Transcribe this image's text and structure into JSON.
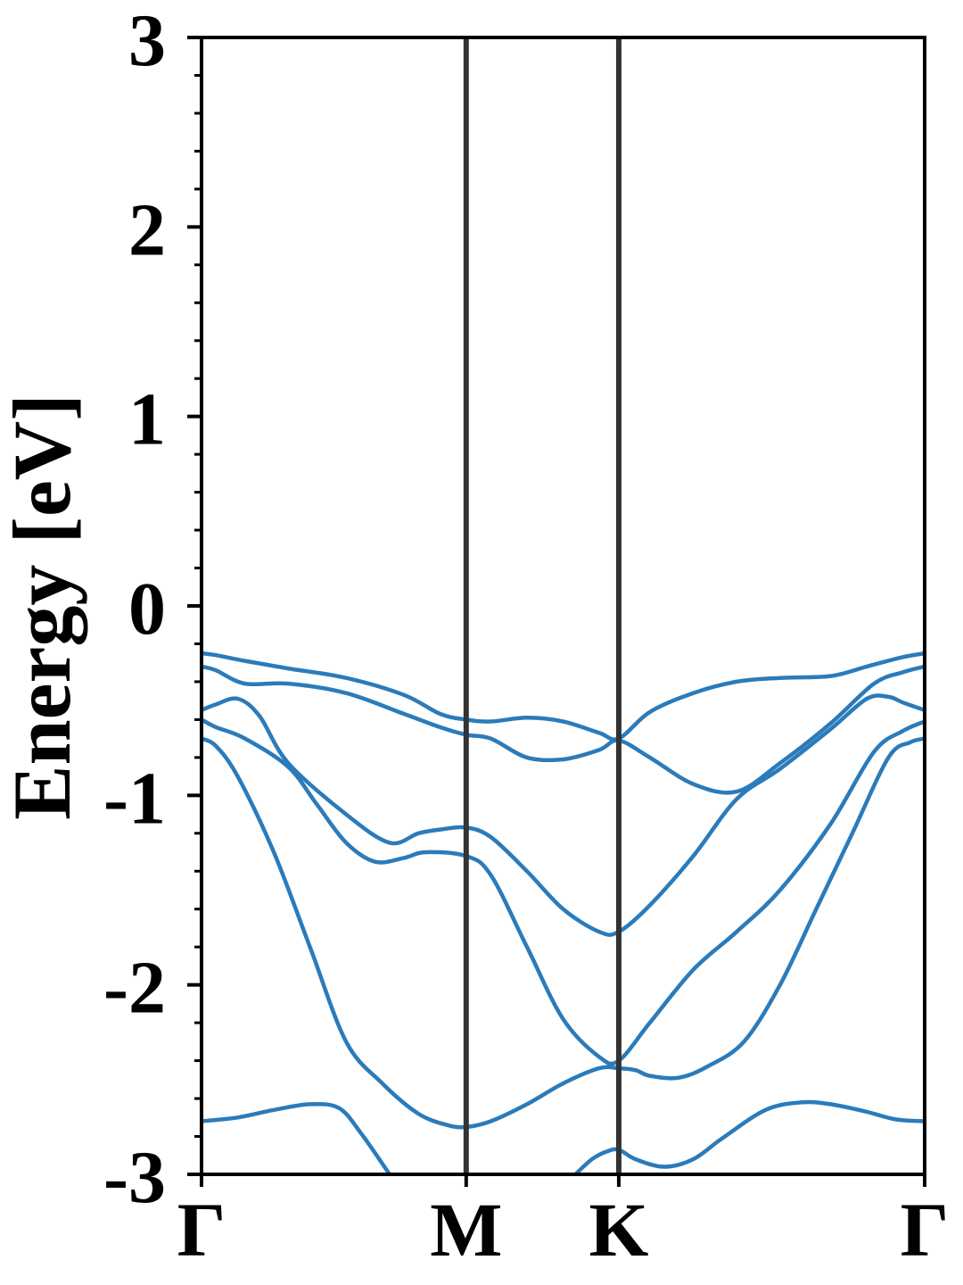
{
  "chart_data": {
    "type": "line",
    "title": "",
    "xlabel": "",
    "ylabel": "Energy [eV]",
    "xlim": [
      0,
      1
    ],
    "ylim": [
      -3,
      3
    ],
    "y_ticks": [
      {
        "value": 3,
        "label": "3"
      },
      {
        "value": 2,
        "label": "2"
      },
      {
        "value": 1,
        "label": "1"
      },
      {
        "value": 0,
        "label": "0"
      },
      {
        "value": -1,
        "label": "-1"
      },
      {
        "value": -2,
        "label": "-2"
      },
      {
        "value": -3,
        "label": "-3"
      }
    ],
    "k_points": [
      {
        "label": "Γ",
        "x": 0.0
      },
      {
        "label": "M",
        "x": 0.366
      },
      {
        "label": "K",
        "x": 0.577
      },
      {
        "label": "Γ",
        "x": 1.0
      }
    ],
    "grid": false,
    "line_color": "#2b7bba",
    "series": [
      {
        "x": [
          0.0,
          0.02,
          0.06,
          0.12,
          0.2,
          0.28,
          0.33,
          0.366,
          0.4,
          0.45,
          0.5,
          0.55,
          0.577,
          0.62,
          0.68,
          0.74,
          0.8,
          0.87,
          0.92,
          0.97,
          1.0
        ],
        "y": [
          -0.25,
          -0.26,
          -0.29,
          -0.33,
          -0.38,
          -0.47,
          -0.57,
          -0.6,
          -0.61,
          -0.59,
          -0.61,
          -0.67,
          -0.7,
          -0.56,
          -0.46,
          -0.4,
          -0.38,
          -0.37,
          -0.32,
          -0.27,
          -0.25
        ]
      },
      {
        "x": [
          0.0,
          0.02,
          0.06,
          0.12,
          0.2,
          0.28,
          0.33,
          0.366,
          0.4,
          0.45,
          0.5,
          0.55,
          0.577,
          0.62,
          0.68,
          0.74,
          0.8,
          0.87,
          0.93,
          0.97,
          1.0
        ],
        "y": [
          -0.32,
          -0.34,
          -0.41,
          -0.41,
          -0.46,
          -0.57,
          -0.64,
          -0.68,
          -0.7,
          -0.8,
          -0.81,
          -0.76,
          -0.71,
          -0.8,
          -0.94,
          -0.98,
          -0.83,
          -0.62,
          -0.41,
          -0.35,
          -0.32
        ]
      },
      {
        "x": [
          0.0,
          0.02,
          0.05,
          0.08,
          0.12,
          0.2,
          0.26,
          0.3,
          0.33,
          0.366,
          0.4,
          0.45,
          0.5,
          0.55,
          0.577,
          0.62,
          0.68,
          0.74,
          0.8,
          0.87,
          0.92,
          0.95,
          0.97,
          1.0
        ],
        "y": [
          -0.55,
          -0.52,
          -0.49,
          -0.58,
          -0.83,
          -1.1,
          -1.25,
          -1.2,
          -1.18,
          -1.17,
          -1.22,
          -1.4,
          -1.6,
          -1.72,
          -1.72,
          -1.58,
          -1.32,
          -1.02,
          -0.86,
          -0.65,
          -0.49,
          -0.48,
          -0.51,
          -0.55
        ]
      },
      {
        "x": [
          0.0,
          0.02,
          0.06,
          0.12,
          0.16,
          0.2,
          0.24,
          0.28,
          0.31,
          0.366,
          0.4,
          0.45,
          0.5,
          0.55,
          0.577,
          0.62,
          0.68,
          0.74,
          0.8,
          0.87,
          0.93,
          0.97,
          1.0
        ],
        "y": [
          -0.6,
          -0.64,
          -0.7,
          -0.85,
          -1.05,
          -1.25,
          -1.35,
          -1.33,
          -1.3,
          -1.32,
          -1.42,
          -1.8,
          -2.18,
          -2.38,
          -2.4,
          -2.2,
          -1.92,
          -1.72,
          -1.5,
          -1.15,
          -0.77,
          -0.66,
          -0.61
        ]
      },
      {
        "x": [
          0.0,
          0.02,
          0.05,
          0.1,
          0.15,
          0.2,
          0.25,
          0.3,
          0.34,
          0.366,
          0.4,
          0.45,
          0.5,
          0.55,
          0.577,
          0.6,
          0.62,
          0.66,
          0.7,
          0.75,
          0.8,
          0.85,
          0.9,
          0.95,
          0.98,
          1.0
        ],
        "y": [
          -0.7,
          -0.74,
          -0.9,
          -1.3,
          -1.8,
          -2.3,
          -2.52,
          -2.68,
          -2.74,
          -2.75,
          -2.72,
          -2.63,
          -2.52,
          -2.44,
          -2.44,
          -2.45,
          -2.48,
          -2.49,
          -2.43,
          -2.3,
          -2.0,
          -1.6,
          -1.2,
          -0.8,
          -0.72,
          -0.7
        ]
      },
      {
        "x": [
          0.0,
          0.05,
          0.1,
          0.15,
          0.19,
          0.22,
          0.26
        ],
        "y": [
          -2.72,
          -2.7,
          -2.66,
          -2.63,
          -2.65,
          -2.78,
          -3.0
        ]
      },
      {
        "x": [
          0.517,
          0.54,
          0.56,
          0.577,
          0.6,
          0.64,
          0.68,
          0.72,
          0.78,
          0.83,
          0.87,
          0.92,
          0.96,
          1.0
        ],
        "y": [
          -3.0,
          -2.92,
          -2.88,
          -2.87,
          -2.92,
          -2.96,
          -2.92,
          -2.81,
          -2.66,
          -2.62,
          -2.63,
          -2.67,
          -2.71,
          -2.72
        ]
      }
    ]
  }
}
